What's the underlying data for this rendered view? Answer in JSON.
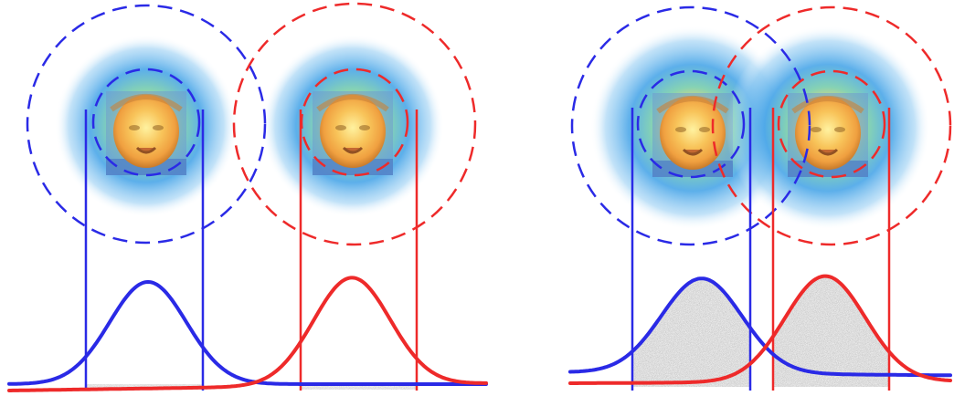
{
  "colors": {
    "background": "#ffffff",
    "left_component": "#2a2ae6",
    "right_component": "#ee2a2a",
    "heatmap_outer": "#4aa6e8",
    "heatmap_mid": "#7fd0b0",
    "heatmap_inner": "#ffe46a",
    "face_skin": "#f0a040",
    "noise_fill": "#8a8a8a"
  },
  "panels": [
    {
      "id": "separated",
      "blobs": [
        {
          "component": "left",
          "icon": "face-heatmap-icon"
        },
        {
          "component": "right",
          "icon": "face-heatmap-icon"
        }
      ],
      "curves": [
        {
          "component": "left",
          "shape": "gaussian"
        },
        {
          "component": "right",
          "shape": "gaussian"
        }
      ],
      "overlap": "none"
    },
    {
      "id": "overlapping",
      "blobs": [
        {
          "component": "left",
          "icon": "face-heatmap-icon"
        },
        {
          "component": "right",
          "icon": "face-heatmap-icon"
        }
      ],
      "curves": [
        {
          "component": "left",
          "shape": "gaussian"
        },
        {
          "component": "right",
          "shape": "gaussian"
        }
      ],
      "overlap": "shaded-tails"
    }
  ]
}
